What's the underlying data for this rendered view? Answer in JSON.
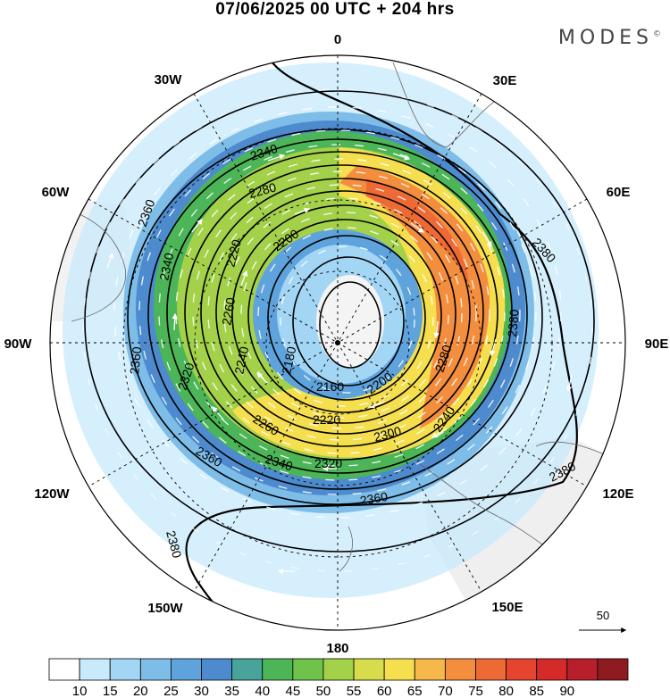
{
  "title": "07/06/2025  00 UTC  + 204 hrs",
  "brand": "MODES",
  "brand_mark": "©",
  "longitude_labels": {
    "n": "0",
    "ne": "30E",
    "ene": "60E",
    "e": "90E",
    "ese": "120E",
    "se": "150E",
    "s": "180",
    "sw": "150W",
    "wsw": "120W",
    "w": "90W",
    "wnw": "60W",
    "nw": "30W"
  },
  "contour_labels": [
    "2340",
    "2360",
    "2280",
    "2200",
    "2380",
    "2340",
    "2380",
    "2260",
    "2240",
    "2180",
    "2160",
    "2200",
    "2280",
    "2360",
    "2360",
    "2320",
    "2260",
    "2220",
    "2300",
    "2240",
    "2340",
    "2320",
    "2360",
    "2380",
    "2380",
    "2220"
  ],
  "reference_vector": {
    "label": "50"
  },
  "colorbar": {
    "colors": [
      "#ffffff",
      "#c8eafb",
      "#a3d6f5",
      "#7fbde9",
      "#5fa3dc",
      "#4d8bce",
      "#48a39a",
      "#4cb557",
      "#6fc24a",
      "#a4d14a",
      "#d6dc4c",
      "#f5df4e",
      "#f6b84a",
      "#f48e3f",
      "#ee6a35",
      "#e5452f",
      "#d42a2a",
      "#b71f2a",
      "#8e1b1f"
    ],
    "ticks": [
      "10",
      "15",
      "20",
      "25",
      "30",
      "35",
      "40",
      "45",
      "50",
      "55",
      "60",
      "65",
      "70",
      "75",
      "80",
      "85",
      "90"
    ]
  }
}
